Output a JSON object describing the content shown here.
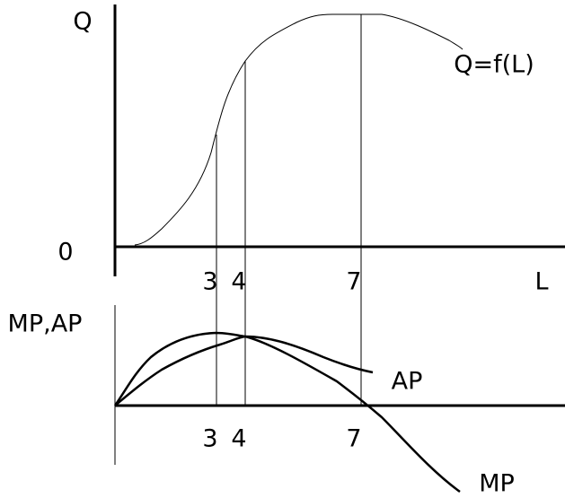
{
  "top_panel": {
    "y_label": "Q",
    "origin_label": "0",
    "x_label": "L",
    "ticks": [
      "3",
      "4",
      "7"
    ],
    "curve_label": "Q=f(L)"
  },
  "bottom_panel": {
    "y_label": "MP,AP",
    "ticks": [
      "3",
      "4",
      "7"
    ],
    "ap_label": "AP",
    "mp_label": "MP"
  }
}
